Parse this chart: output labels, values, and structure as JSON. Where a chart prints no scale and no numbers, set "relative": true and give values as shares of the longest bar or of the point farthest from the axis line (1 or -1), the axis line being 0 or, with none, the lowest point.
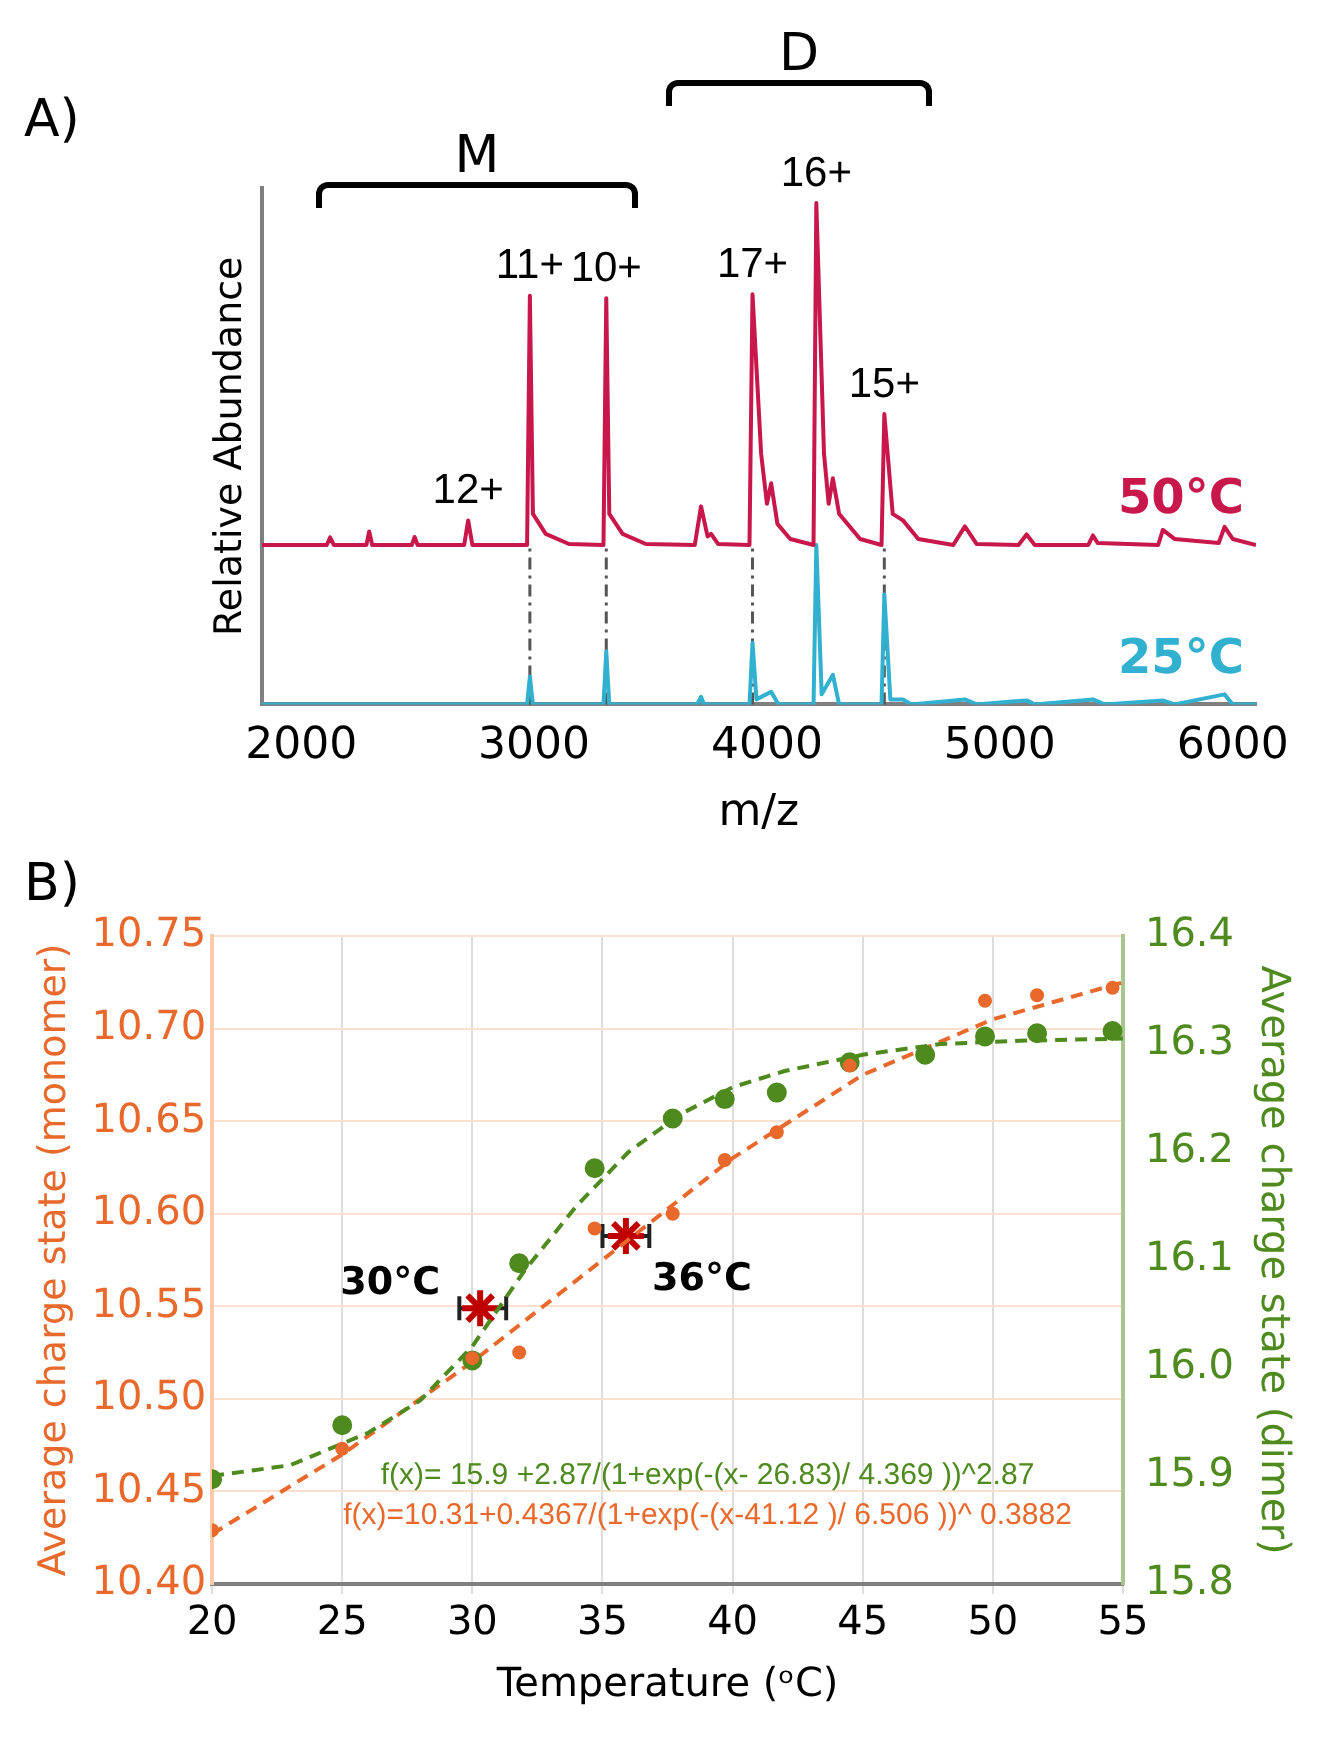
{
  "chart_data": [
    {
      "type": "line",
      "title": "A)",
      "xlabel": "m/z",
      "ylabel": "Relative Abundance",
      "relative": true,
      "xlim": [
        1830,
        6100
      ],
      "xticks": [
        2000,
        3000,
        4000,
        5000,
        6000
      ],
      "grid": false,
      "legend": false,
      "marker": "none",
      "series": [
        {
          "name": "50°C",
          "color": "#c8174a",
          "x": [
            1830,
            2110,
            2124,
            2140,
            2280,
            2292,
            2305,
            2475,
            2487,
            2500,
            2700,
            2717,
            2735,
            2970,
            2982,
            2995,
            3050,
            3150,
            3298,
            3310,
            3323,
            3380,
            3480,
            3690,
            3717,
            3745,
            3760,
            3790,
            3925,
            3938,
            3975,
            4000,
            4018,
            4045,
            4100,
            4200,
            4212,
            4245,
            4265,
            4283,
            4310,
            4400,
            4492,
            4504,
            4540,
            4584,
            4650,
            4800,
            4850,
            4900,
            5080,
            5115,
            5150,
            5380,
            5400,
            5420,
            5680,
            5700,
            5750,
            5940,
            5965,
            6000,
            6100
          ],
          "values": [
            0.318,
            0.318,
            0.333,
            0.318,
            0.318,
            0.345,
            0.318,
            0.318,
            0.334,
            0.318,
            0.318,
            0.367,
            0.318,
            0.318,
            0.815,
            0.38,
            0.34,
            0.32,
            0.318,
            0.81,
            0.38,
            0.34,
            0.32,
            0.318,
            0.395,
            0.335,
            0.34,
            0.32,
            0.318,
            0.818,
            0.5,
            0.4,
            0.441,
            0.36,
            0.33,
            0.318,
            1.0,
            0.5,
            0.4,
            0.451,
            0.38,
            0.33,
            0.318,
            0.579,
            0.38,
            0.367,
            0.33,
            0.318,
            0.355,
            0.32,
            0.318,
            0.339,
            0.318,
            0.318,
            0.337,
            0.322,
            0.318,
            0.348,
            0.33,
            0.322,
            0.354,
            0.33,
            0.318
          ]
        },
        {
          "name": "25°C",
          "color": "#31b0d0",
          "x": [
            1830,
            2970,
            2982,
            2995,
            3298,
            3310,
            3323,
            3700,
            3717,
            3730,
            3925,
            3938,
            3955,
            4018,
            4050,
            4200,
            4212,
            4235,
            4283,
            4310,
            4492,
            4504,
            4530,
            4584,
            4620,
            4850,
            4900,
            5115,
            5150,
            5400,
            5450,
            5700,
            5750,
            5965,
            6000,
            6100
          ],
          "values": [
            0,
            0,
            0.055,
            0,
            0,
            0.106,
            0,
            0,
            0.015,
            0,
            0,
            0.123,
            0.01,
            0.025,
            0,
            0,
            0.318,
            0.02,
            0.059,
            0,
            0,
            0.219,
            0.01,
            0.01,
            0,
            0.01,
            0,
            0.008,
            0,
            0.01,
            0,
            0.008,
            0,
            0.02,
            0,
            0
          ]
        }
      ],
      "ref_lines": [
        {
          "axis": "x",
          "value": 2982,
          "color": "#555555",
          "line_style": "dashed"
        },
        {
          "axis": "x",
          "value": 3310,
          "color": "#555555",
          "line_style": "dashed"
        },
        {
          "axis": "x",
          "value": 3938,
          "color": "#555555",
          "line_style": "dashed"
        },
        {
          "axis": "x",
          "value": 4504,
          "color": "#555555",
          "line_style": "dashed"
        }
      ],
      "annotations": [
        "M",
        "D",
        {
          "text": "12+",
          "x": 2717,
          "y": 0.367
        },
        {
          "text": "11+",
          "x": 2982,
          "y": 0.815
        },
        {
          "text": "10+",
          "x": 3310,
          "y": 0.81
        },
        {
          "text": "17+",
          "x": 3938,
          "y": 0.818
        },
        {
          "text": "16+",
          "x": 4212,
          "y": 1.0
        },
        {
          "text": "15+",
          "x": 4504,
          "y": 0.579
        }
      ]
    },
    {
      "type": "scatter",
      "title": "B)",
      "xlabel": "Temperature (ᵒC)",
      "ylabel": "Average charge state (monomer)",
      "y2label": "Average charge state (dimer)",
      "xlim": [
        20,
        55
      ],
      "xticks": [
        20,
        25,
        30,
        35,
        40,
        45,
        50,
        55
      ],
      "ylim": [
        10.4,
        10.75
      ],
      "yticks": [
        {
          "value": 10.4,
          "label": "10.40"
        },
        10.45,
        {
          "value": 10.5,
          "label": "10.50"
        },
        10.55,
        {
          "value": 10.6,
          "label": "10.60"
        },
        10.65,
        {
          "value": 10.7,
          "label": "10.70"
        },
        10.75
      ],
      "y2lim": [
        15.8,
        16.4
      ],
      "y2ticks": [
        15.8,
        15.9,
        {
          "value": 16,
          "label": "16.0"
        },
        16.1,
        16.2,
        16.3,
        16.4
      ],
      "grid": true,
      "legend": false,
      "marker": "circle",
      "series": [
        {
          "type": "scatter",
          "color": "#e8692b",
          "axis": "y",
          "x": [
            20,
            25,
            30,
            31.8,
            34.7,
            37.7,
            39.7,
            41.7,
            44.5,
            49.7,
            51.7,
            54.6
          ],
          "values": [
            10.429,
            10.473,
            10.522,
            10.525,
            10.592,
            10.6,
            10.629,
            10.644,
            10.68,
            10.715,
            10.718,
            10.722
          ]
        },
        {
          "type": "scatter",
          "color": "#4e8a1e",
          "axis": "y2",
          "x": [
            20,
            25,
            30,
            31.8,
            34.7,
            37.7,
            39.7,
            41.7,
            44.5,
            47.4,
            49.7,
            51.7,
            54.6
          ],
          "values": [
            15.897,
            15.947,
            16.007,
            16.097,
            16.185,
            16.231,
            16.249,
            16.255,
            16.283,
            16.29,
            16.307,
            16.31,
            16.312
          ]
        },
        {
          "type": "line",
          "color": "#4e8a1e",
          "axis": "y2",
          "marker": "none",
          "line_style": "dashed",
          "x": [
            20,
            23,
            26,
            28,
            30,
            32,
            34,
            36,
            38,
            40,
            42,
            45,
            48,
            51,
            55
          ],
          "values": [
            15.9,
            15.91,
            15.94,
            15.97,
            16.02,
            16.09,
            16.15,
            16.2,
            16.235,
            16.26,
            16.275,
            16.29,
            16.3,
            16.303,
            16.305
          ]
        },
        {
          "type": "line",
          "color": "#e8692b",
          "axis": "y",
          "marker": "none",
          "line_style": "dashed",
          "x": [
            20,
            25,
            30,
            35,
            40,
            45,
            50,
            55
          ],
          "values": [
            10.427,
            10.47,
            10.52,
            10.575,
            10.63,
            10.675,
            10.705,
            10.725
          ]
        },
        {
          "type": "scatter",
          "color": "#c00000",
          "axis": "y",
          "marker": "cross",
          "x": [
            30.3,
            35.9
          ],
          "values": [
            10.549,
            10.588
          ],
          "xerrors": [
            [
              29.5,
              31.3
            ],
            [
              35.0,
              36.8
            ]
          ]
        }
      ],
      "annotations": [
        "f(x)= 15.9 +2.87/(1+exp(-(x- 26.83)/ 4.369 ))^2.87",
        "f(x)=10.31+0.4367/(1+exp(-(x-41.12 )/ 6.506 ))^ 0.3882",
        {
          "text": "30°C",
          "x": 30.3,
          "y": 10.549
        },
        {
          "text": "36°C",
          "x": 35.9,
          "y": 10.588
        }
      ]
    }
  ]
}
